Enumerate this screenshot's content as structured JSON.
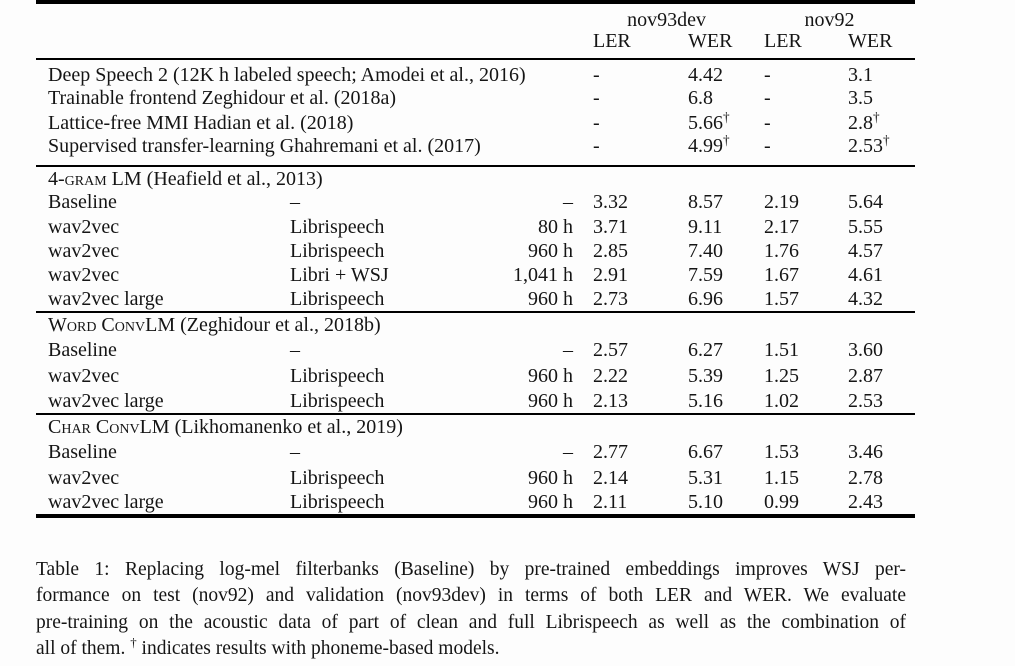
{
  "page": {
    "background": "#fdfdfd",
    "text_color": "#151515",
    "rule_color": "#000000"
  },
  "table": {
    "header": {
      "groups": [
        {
          "label": "nov93dev"
        },
        {
          "label": "nov92"
        }
      ],
      "subcols": [
        "LER",
        "WER",
        "LER",
        "WER"
      ]
    },
    "sections": [
      {
        "rows": [
          {
            "label": "Deep Speech 2 (12K h labeled speech; Amodei et al., 2016)",
            "cells": [
              "-",
              "4.42",
              "-",
              "3.1"
            ]
          },
          {
            "label": "Trainable frontend Zeghidour et al. (2018a)",
            "cells": [
              "-",
              "6.8",
              "-",
              "3.5"
            ]
          },
          {
            "label": "Lattice-free MMI Hadian et al. (2018)",
            "cells": [
              "-",
              {
                "v": "5.66",
                "sup": "†"
              },
              "-",
              {
                "v": "2.8",
                "sup": "†"
              }
            ]
          },
          {
            "label": "Supervised transfer-learning Ghahremani et al. (2017)",
            "cells": [
              "-",
              {
                "v": "4.99",
                "sup": "†"
              },
              "-",
              {
                "v": "2.53",
                "sup": "†"
              }
            ]
          }
        ]
      },
      {
        "header": {
          "name": "4-gram LM",
          "cite": "(Heafield et al., 2013)"
        },
        "rows": [
          {
            "model": "Baseline",
            "data": "–",
            "hours": "–",
            "cells": [
              "3.32",
              "8.57",
              "2.19",
              "5.64"
            ]
          },
          {
            "model": "wav2vec",
            "data": "Librispeech",
            "hours": "80 h",
            "cells": [
              "3.71",
              "9.11",
              "2.17",
              "5.55"
            ]
          },
          {
            "model": "wav2vec",
            "data": "Librispeech",
            "hours": "960 h",
            "cells": [
              "2.85",
              "7.40",
              "1.76",
              "4.57"
            ]
          },
          {
            "model": "wav2vec",
            "data": "Libri + WSJ",
            "hours": "1,041 h",
            "cells": [
              "2.91",
              "7.59",
              "1.67",
              "4.61"
            ]
          },
          {
            "model": "wav2vec large",
            "data": "Librispeech",
            "hours": "960 h",
            "cells": [
              "2.73",
              "6.96",
              "1.57",
              "4.32"
            ]
          }
        ]
      },
      {
        "header": {
          "name": "Word ConvLM",
          "cite": "(Zeghidour et al., 2018b)"
        },
        "rows": [
          {
            "model": "Baseline",
            "data": "–",
            "hours": "–",
            "cells": [
              "2.57",
              "6.27",
              "1.51",
              "3.60"
            ]
          },
          {
            "model": "wav2vec",
            "data": "Librispeech",
            "hours": "960 h",
            "cells": [
              "2.22",
              "5.39",
              "1.25",
              "2.87"
            ]
          },
          {
            "model": "wav2vec large",
            "data": "Librispeech",
            "hours": "960 h",
            "cells": [
              "2.13",
              "5.16",
              "1.02",
              "2.53"
            ]
          }
        ]
      },
      {
        "header": {
          "name": "Char ConvLM",
          "cite": "(Likhomanenko et al., 2019)"
        },
        "rows": [
          {
            "model": "Baseline",
            "data": "–",
            "hours": "–",
            "cells": [
              "2.77",
              "6.67",
              "1.53",
              "3.46"
            ]
          },
          {
            "model": "wav2vec",
            "data": "Librispeech",
            "hours": "960 h",
            "cells": [
              "2.14",
              "5.31",
              "1.15",
              "2.78"
            ]
          },
          {
            "model": "wav2vec large",
            "data": "Librispeech",
            "hours": "960 h",
            "cells": [
              "2.11",
              "5.10",
              "0.99",
              "2.43"
            ]
          }
        ]
      }
    ]
  },
  "caption": {
    "lines": [
      "Table 1: Replacing log-mel filterbanks (Baseline) by pre-trained embeddings improves WSJ per-",
      "formance on test (nov92) and validation (nov93dev) in terms of both LER and WER. We evaluate",
      "pre-training on the acoustic data of part of clean and full Librispeech as well as the combination of"
    ],
    "last_line": {
      "prefix": "all of them.",
      "sup": "†",
      "suffix": "indicates results with phoneme-based models."
    }
  }
}
